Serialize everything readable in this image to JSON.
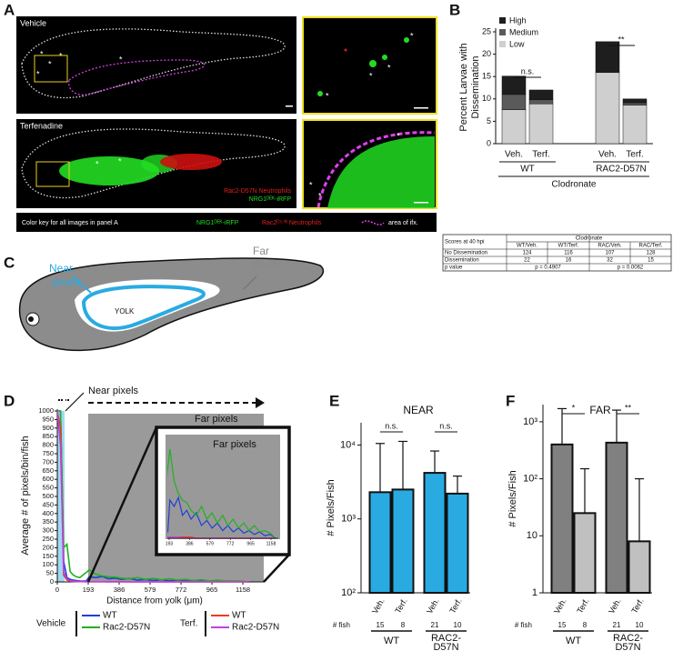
{
  "panel_letters": [
    "A",
    "B",
    "C",
    "D",
    "E",
    "F"
  ],
  "panel_a": {
    "vehicle": "Vehicle",
    "terfenadine": "Terfenadine",
    "asterisk": "*",
    "image_legend_red": "Rac2-D57N Neutrophils",
    "image_legend_green": "NRG1ᴰᴱᴷ-iRFP",
    "key_title": "Color key for all images in panel A",
    "key_green": "NRG1ᴰᴱᴷ-iRFP",
    "key_red": "Rac2ᴰ⁵⁷ᴺ Neutrophils",
    "key_magenta": "area of ifx."
  },
  "table": {
    "corner": "Scores at 40 hpi",
    "group": "Clodronate",
    "columns": [
      "WT/Veh.",
      "WT/Terf.",
      "RAC/Veh.",
      "RAC/Terf."
    ],
    "rows": [
      {
        "label": "No Dissemination",
        "values": [
          124,
          116,
          107,
          128
        ]
      },
      {
        "label": "Dissemination",
        "values": [
          22,
          16,
          32,
          15
        ]
      }
    ],
    "p_label": "p value",
    "p_values": [
      "p = 0.4907",
      "p = 0.0062"
    ]
  },
  "diagram": {
    "near": [
      "Near",
      "pixels"
    ],
    "far": [
      "Far",
      "pixels"
    ],
    "yolk": "YOLK"
  },
  "chart_data": [
    {
      "type": "stacked_bar",
      "y_label": [
        "Percent Larvae with",
        "Dissemination"
      ],
      "categories": [
        "Veh.",
        "Terf.",
        "Veh.",
        "Terf."
      ],
      "groups": [
        "WT",
        "RAC2-D57N"
      ],
      "supergroup": "Clodronate",
      "series": [
        {
          "name": "High",
          "color": "#1e1e1e",
          "values": [
            4.1,
            2.2,
            6.9,
            0.9
          ]
        },
        {
          "name": "Medium",
          "color": "#5a5a5a",
          "values": [
            3.4,
            0.9,
            0,
            0.5
          ]
        },
        {
          "name": "Low",
          "color": "#cfcfcf",
          "values": [
            7.6,
            8.9,
            15.9,
            8.6
          ]
        }
      ],
      "annotations": [
        "n.s.",
        "**"
      ],
      "ylim": [
        0,
        25
      ],
      "yticks": [
        0,
        5,
        10,
        15,
        20,
        25
      ]
    },
    {
      "type": "line",
      "y_label": "Average # of pixels/bin/fish",
      "x_label": "Distance from yolk (μm)",
      "near_label": "Near pixels",
      "far_label": "Far pixels",
      "inset_title": "Far pixels",
      "x": [
        0,
        20,
        40,
        60,
        80,
        100,
        120,
        140,
        160,
        180,
        200,
        240,
        280,
        320,
        360,
        400,
        450,
        500,
        550,
        600,
        650,
        700,
        750,
        800,
        850,
        900,
        950,
        1000,
        1050,
        1100,
        1150,
        1200
      ],
      "series": [
        {
          "name": "WT",
          "color": "#1f3fd6",
          "values": [
            1000,
            1000,
            120,
            25,
            15,
            10,
            8,
            6,
            5,
            5,
            30,
            25,
            32,
            18,
            22,
            15,
            20,
            10,
            14,
            8,
            12,
            6,
            10,
            5,
            8,
            4,
            6,
            3,
            5,
            2,
            3,
            0
          ]
        },
        {
          "name": "Rac2-D57N",
          "color": "#22b022",
          "values": [
            1000,
            1000,
            200,
            220,
            60,
            40,
            30,
            25,
            40,
            55,
            70,
            45,
            35,
            30,
            28,
            22,
            18,
            25,
            15,
            20,
            12,
            18,
            10,
            15,
            8,
            12,
            6,
            10,
            5,
            6,
            4,
            0
          ]
        },
        {
          "name": "WT",
          "color": "#f03a1e",
          "values": [
            1000,
            900,
            40,
            10,
            5,
            3,
            2,
            2,
            1,
            1,
            1,
            1,
            1,
            1,
            1,
            1,
            0,
            0,
            0,
            0,
            0,
            0,
            0,
            0,
            0,
            0,
            0,
            0,
            0,
            0,
            0,
            0
          ]
        },
        {
          "name": "Rac2-D57N",
          "color": "#c040e0",
          "values": [
            1000,
            800,
            60,
            15,
            8,
            4,
            3,
            2,
            2,
            1,
            1,
            1,
            1,
            0,
            0,
            0,
            0,
            0,
            0,
            0,
            0,
            0,
            0,
            0,
            0,
            0,
            0,
            0,
            0,
            0,
            0,
            0
          ]
        }
      ],
      "legend_groups": [
        "Vehicle",
        "Terf."
      ],
      "xlim": [
        0,
        1260
      ],
      "xticks": [
        0,
        193,
        386,
        579,
        772,
        965,
        1158
      ],
      "ylim": [
        0,
        1000
      ],
      "yticks": [
        0,
        50,
        100,
        150,
        200,
        250,
        300,
        350,
        400,
        450,
        500,
        550,
        600,
        650,
        700,
        750,
        800,
        850,
        900,
        950,
        1000
      ],
      "inset_xlim": [
        193,
        1158
      ],
      "inset_xticks": [
        193,
        386,
        579,
        772,
        965,
        1158
      ],
      "inset_ylim": [
        0,
        80
      ]
    },
    {
      "type": "bar",
      "title": "NEAR",
      "y_label": "# Pixels/Fish",
      "log_scale": true,
      "categories": [
        "Veh.",
        "Terf.",
        "Veh.",
        "Terf."
      ],
      "values": [
        2300,
        2500,
        4200,
        2200
      ],
      "errors": [
        8200,
        8700,
        4100,
        1600
      ],
      "colors": [
        "#29abe2",
        "#29abe2",
        "#29abe2",
        "#29abe2"
      ],
      "n_label": "# fish",
      "n": [
        15,
        8,
        21,
        10
      ],
      "groups": [
        [
          "WT"
        ],
        [
          "RAC2-",
          "D57N"
        ]
      ],
      "annotations": [
        "n.s.",
        "n.s."
      ],
      "ylim": [
        100,
        20000
      ],
      "yticks": [
        {
          "value": 100,
          "label": "10²"
        },
        {
          "value": 1000,
          "label": "10³"
        },
        {
          "value": 10000,
          "label": "10⁴"
        }
      ]
    },
    {
      "type": "bar",
      "title": "FAR",
      "y_label": "# Pixels/Fish",
      "log_scale": true,
      "categories": [
        "Veh.",
        "Terf.",
        "Veh.",
        "Terf."
      ],
      "values": [
        400,
        25,
        430,
        8
      ],
      "errors": [
        1300,
        125,
        1170,
        92
      ],
      "colors": [
        "#808080",
        "#c0c0c0",
        "#808080",
        "#c0c0c0"
      ],
      "n_label": "# fish",
      "n": [
        15,
        8,
        21,
        10
      ],
      "groups": [
        [
          "WT"
        ],
        [
          "RAC2-",
          "D57N"
        ]
      ],
      "annotations": [
        "*",
        "**"
      ],
      "ylim": [
        1,
        2000
      ],
      "yticks": [
        1,
        10,
        {
          "value": 100,
          "label": "10²"
        },
        {
          "value": 1000,
          "label": "10³"
        }
      ]
    }
  ]
}
